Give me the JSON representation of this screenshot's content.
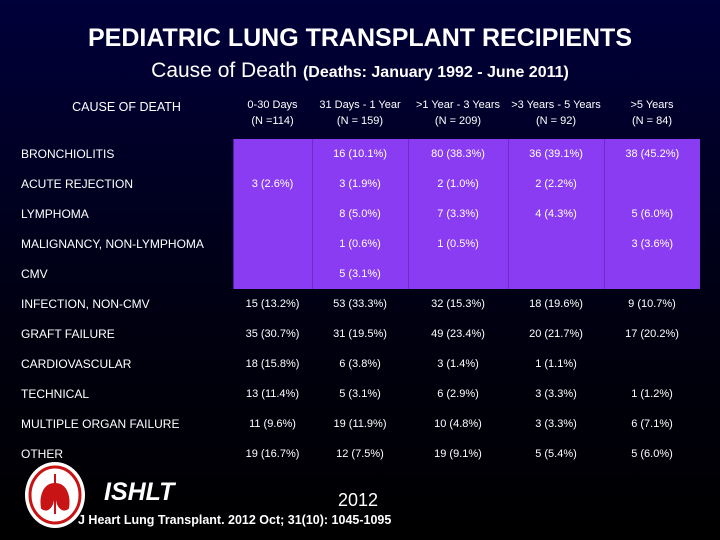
{
  "title": "PEDIATRIC LUNG TRANSPLANT RECIPIENTS",
  "subtitle_main": "Cause of Death",
  "subtitle_paren": "(Deaths: January 1992 - June 2011)",
  "table": {
    "cause_header": "CAUSE OF DEATH",
    "columns": [
      {
        "label": "0-30 Days",
        "n": "(N =114)"
      },
      {
        "label": "31 Days - 1 Year",
        "n": "(N = 159)"
      },
      {
        "label": ">1 Year - 3 Years",
        "n": "(N = 209)"
      },
      {
        "label": ">3 Years - 5 Years",
        "n": "(N = 92)"
      },
      {
        "label": ">5 Years",
        "n": "(N = 84)"
      }
    ],
    "rows": [
      {
        "cause": "BRONCHIOLITIS",
        "cells": [
          "",
          "16 (10.1%)",
          "80 (38.3%)",
          "36 (39.1%)",
          "38 (45.2%)"
        ]
      },
      {
        "cause": "ACUTE REJECTION",
        "cells": [
          "3 (2.6%)",
          "3 (1.9%)",
          "2 (1.0%)",
          "2 (2.2%)",
          ""
        ]
      },
      {
        "cause": "LYMPHOMA",
        "cells": [
          "",
          "8 (5.0%)",
          "7 (3.3%)",
          "4 (4.3%)",
          "5 (6.0%)"
        ]
      },
      {
        "cause": "MALIGNANCY, NON-LYMPHOMA",
        "cells": [
          "",
          "1 (0.6%)",
          "1 (0.5%)",
          "",
          "3 (3.6%)"
        ]
      },
      {
        "cause": "CMV",
        "cells": [
          "",
          "5 (3.1%)",
          "",
          "",
          ""
        ]
      },
      {
        "cause": "INFECTION, NON-CMV",
        "cells": [
          "15 (13.2%)",
          "53 (33.3%)",
          "32 (15.3%)",
          "18 (19.6%)",
          "9 (10.7%)"
        ]
      },
      {
        "cause": "GRAFT FAILURE",
        "cells": [
          "35 (30.7%)",
          "31 (19.5%)",
          "49 (23.4%)",
          "20 (21.7%)",
          "17 (20.2%)"
        ]
      },
      {
        "cause": "CARDIOVASCULAR",
        "cells": [
          "18 (15.8%)",
          "6 (3.8%)",
          "3 (1.4%)",
          "1 (1.1%)",
          ""
        ]
      },
      {
        "cause": "TECHNICAL",
        "cells": [
          "13 (11.4%)",
          "5 (3.1%)",
          "6 (2.9%)",
          "3 (3.3%)",
          "1 (1.2%)"
        ]
      },
      {
        "cause": "MULTIPLE ORGAN FAILURE",
        "cells": [
          "11 (9.6%)",
          "19 (11.9%)",
          "10 (4.8%)",
          "3 (3.3%)",
          "6 (7.1%)"
        ]
      },
      {
        "cause": "OTHER",
        "cells": [
          "19 (16.7%)",
          "12 (7.5%)",
          "19 (9.1%)",
          "5 (5.4%)",
          "5 (6.0%)"
        ]
      }
    ]
  },
  "footer": {
    "org": "ISHLT",
    "year": "2012",
    "citation": "J Heart Lung Transplant. 2012 Oct; 31(10): 1045-1095"
  },
  "colors": {
    "row_highlight": "#8a3cf2",
    "background": "#00003a"
  }
}
